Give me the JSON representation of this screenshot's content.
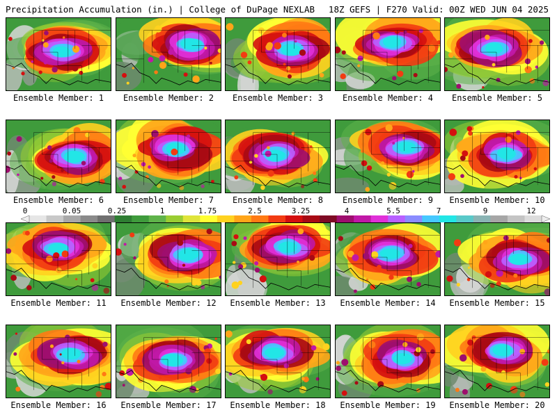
{
  "header": {
    "title_left": "Precipitation Accumulation (in.) | College of DuPage NEXLAB",
    "title_right": "18Z GEFS | F270 Valid: 00Z WED JUN 04 2025"
  },
  "colorbar": {
    "tick_labels": [
      "0",
      "0.05",
      "0.25",
      "1",
      "1.75",
      "2.5",
      "3.25",
      "4",
      "5.5",
      "7",
      "9",
      "12"
    ],
    "colors": [
      "#e6e6e6",
      "#c8c8c8",
      "#a8a8a8",
      "#8a8a8a",
      "#6f6f6f",
      "#2e7d32",
      "#3f9b3c",
      "#5fb34a",
      "#9acd32",
      "#dfe43a",
      "#ffff33",
      "#ffd21f",
      "#ffa519",
      "#ff7a14",
      "#f23b12",
      "#d40f0f",
      "#a80a14",
      "#7e0a24",
      "#9e0e6e",
      "#c018a6",
      "#e030d8",
      "#b860ff",
      "#8a8cff",
      "#46c8ff",
      "#22e6e6",
      "#59c9c9",
      "#8ab4b4",
      "#a6a6a6",
      "#c4c4c4",
      "#dcdcdc"
    ]
  },
  "members": [
    {
      "label": "Ensemble Member: 1"
    },
    {
      "label": "Ensemble Member: 2"
    },
    {
      "label": "Ensemble Member: 3"
    },
    {
      "label": "Ensemble Member: 4"
    },
    {
      "label": "Ensemble Member: 5"
    },
    {
      "label": "Ensemble Member: 6"
    },
    {
      "label": "Ensemble Member: 7"
    },
    {
      "label": "Ensemble Member: 8"
    },
    {
      "label": "Ensemble Member: 9"
    },
    {
      "label": "Ensemble Member: 10"
    },
    {
      "label": "Ensemble Member: 11"
    },
    {
      "label": "Ensemble Member: 12"
    },
    {
      "label": "Ensemble Member: 13"
    },
    {
      "label": "Ensemble Member: 14"
    },
    {
      "label": "Ensemble Member: 15"
    },
    {
      "label": "Ensemble Member: 16"
    },
    {
      "label": "Ensemble Member: 17"
    },
    {
      "label": "Ensemble Member: 18"
    },
    {
      "label": "Ensemble Member: 19"
    },
    {
      "label": "Ensemble Member: 20"
    }
  ]
}
